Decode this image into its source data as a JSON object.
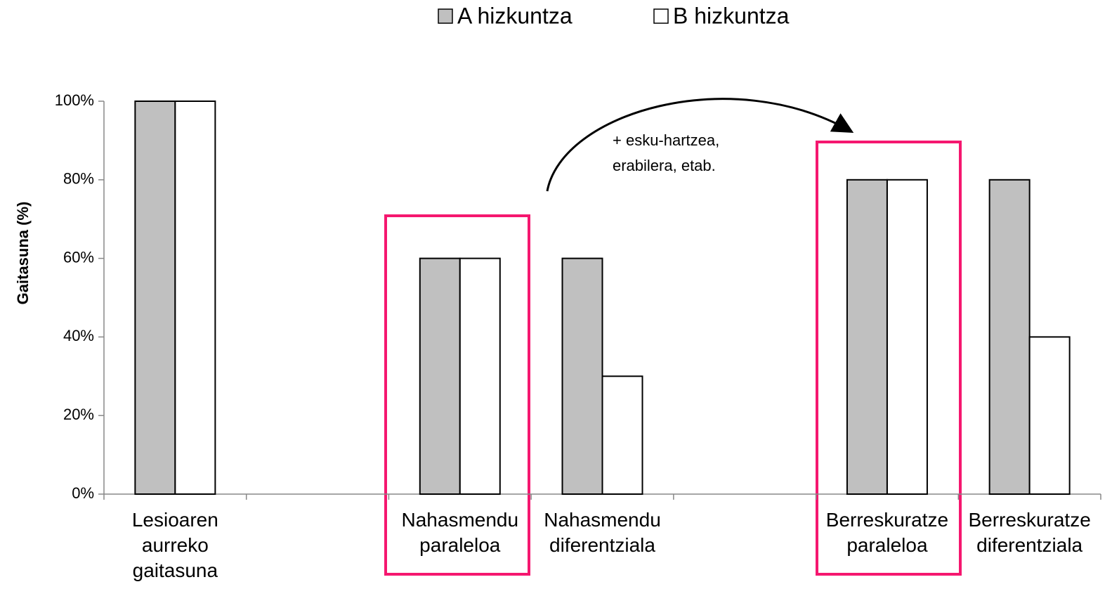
{
  "chart_data": {
    "type": "bar",
    "categories": [
      "Lesioaren aurreko gaitasuna",
      null,
      "Nahasmendu paraleloa",
      "Nahasmendu diferentziala",
      null,
      "Berreskuratze paraleloa",
      "Berreskuratze diferentziala"
    ],
    "series": [
      {
        "name": "A hizkuntza",
        "color": "#c0c0c0",
        "values": [
          100,
          null,
          60,
          60,
          null,
          80,
          80
        ]
      },
      {
        "name": "B hizkuntza",
        "color": "#ffffff",
        "values": [
          100,
          null,
          60,
          30,
          null,
          80,
          40
        ]
      }
    ],
    "ylabel": "Gaitasuna (%)",
    "ylim": [
      0,
      100
    ],
    "yticks": [
      {
        "value": 0,
        "label": "0%"
      },
      {
        "value": 20,
        "label": "20%"
      },
      {
        "value": 40,
        "label": "40%"
      },
      {
        "value": 60,
        "label": "60%"
      },
      {
        "value": 80,
        "label": "80%"
      },
      {
        "value": 100,
        "label": "100%"
      }
    ],
    "annotation": [
      "+ esku-hartzea,",
      "erabilera, etab."
    ],
    "legend": "top"
  }
}
